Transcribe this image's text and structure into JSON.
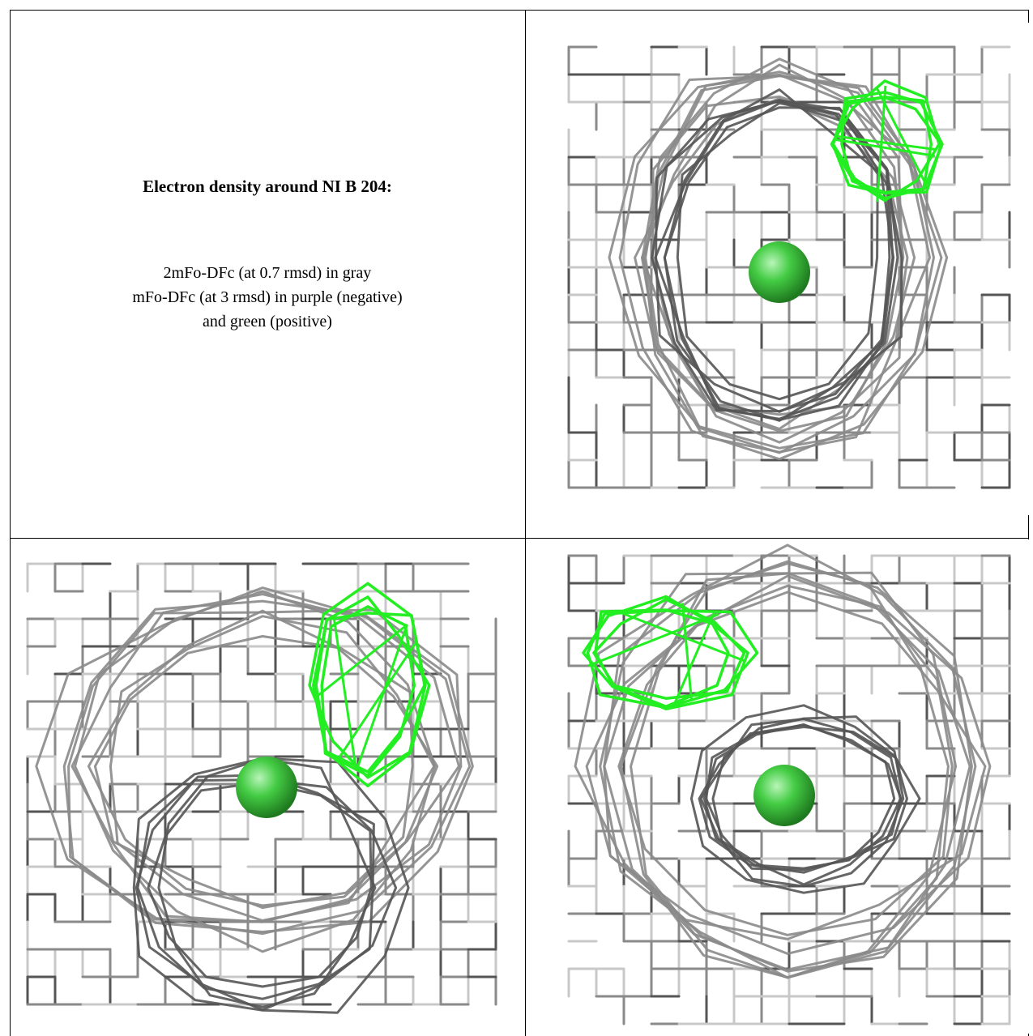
{
  "heading": "Electron density around NI B 204:",
  "caption": {
    "line1": "2mFo-DFc (at 0.7 rmsd) in gray",
    "line2": "mFo-DFc (at 3 rmsd) in purple (negative)",
    "line3": "and green (positive)"
  },
  "colors": {
    "mesh_dark": "#555555",
    "mesh_mid": "#8a8a8a",
    "mesh_light": "#c8c8c8",
    "positive_density": "#22ee22",
    "atom_sphere": "#44cc44",
    "frame": "#000000"
  },
  "panels": [
    {
      "name": "view-top-right"
    },
    {
      "name": "view-bottom-left"
    },
    {
      "name": "view-bottom-right"
    }
  ]
}
